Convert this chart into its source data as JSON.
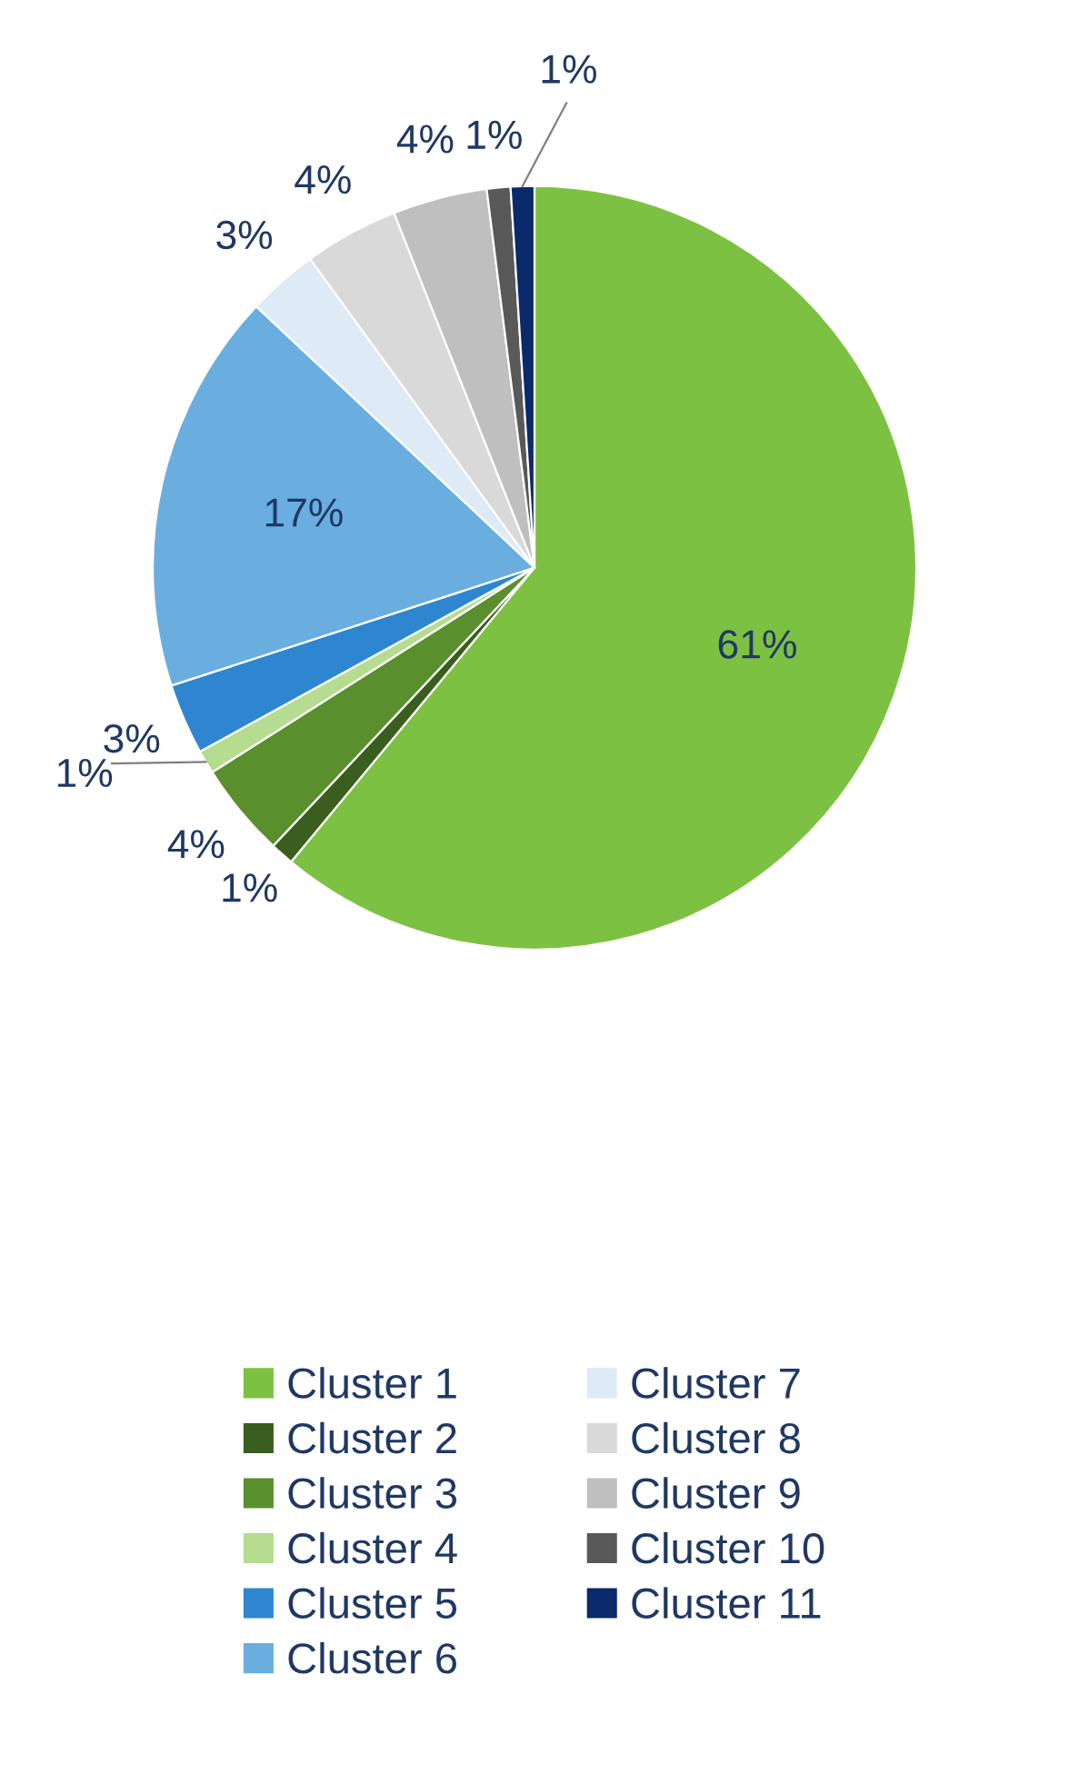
{
  "chart_data": {
    "type": "pie",
    "categories": [
      "Cluster 1",
      "Cluster 2",
      "Cluster 3",
      "Cluster 4",
      "Cluster 5",
      "Cluster 6",
      "Cluster 7",
      "Cluster 8",
      "Cluster 9",
      "Cluster 10",
      "Cluster 11"
    ],
    "values": [
      61,
      1,
      4,
      1,
      3,
      17,
      3,
      4,
      4,
      1,
      1
    ],
    "colors": [
      "#7dc142",
      "#3a5e1e",
      "#5a8f2e",
      "#b5dc8f",
      "#2f86d0",
      "#6aaee0",
      "#deeaf5",
      "#d9d9d9",
      "#bfbfbf",
      "#595959",
      "#0b2a6b"
    ],
    "value_labels": [
      "61%",
      "1%",
      "4%",
      "1%",
      "3%",
      "17%",
      "3%",
      "4%",
      "4%",
      "1%",
      "1%"
    ],
    "legend": "bottom"
  }
}
